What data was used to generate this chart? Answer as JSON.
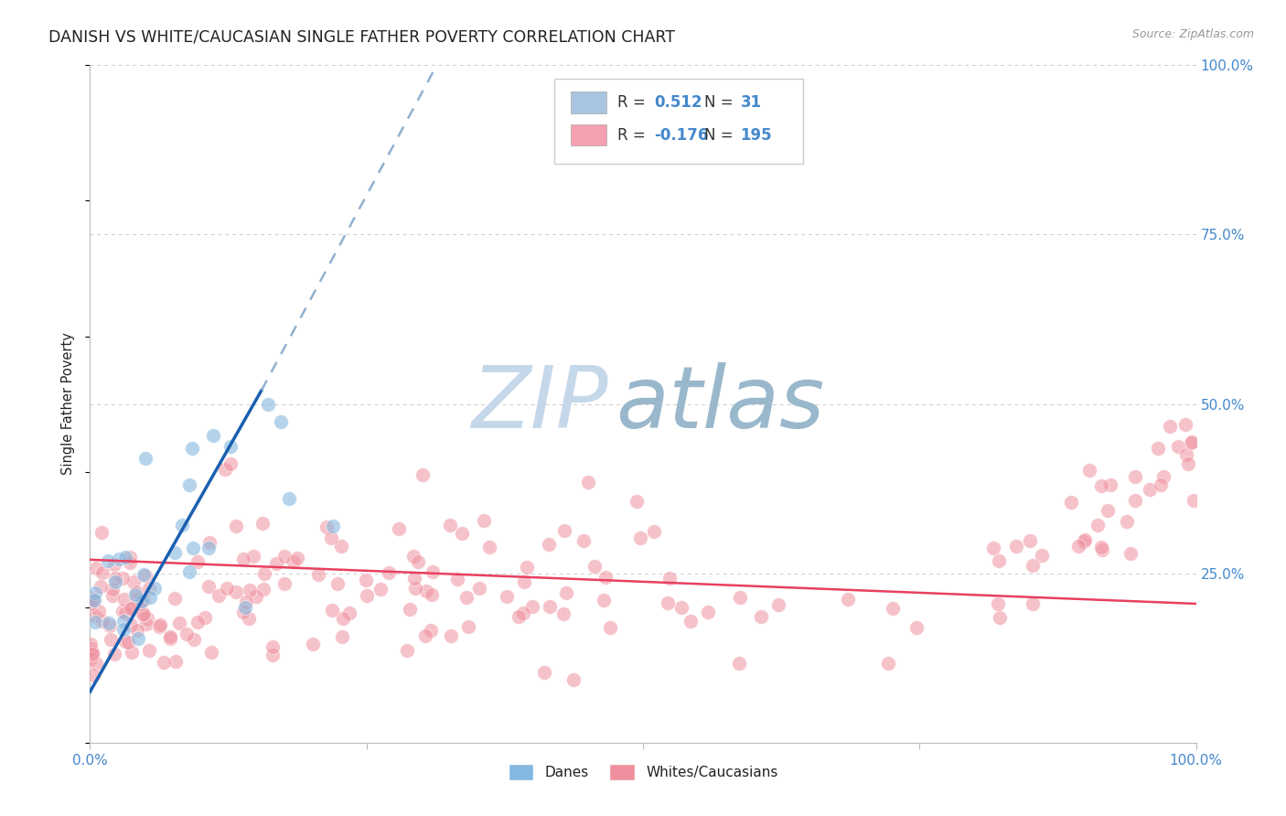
{
  "title": "DANISH VS WHITE/CAUCASIAN SINGLE FATHER POVERTY CORRELATION CHART",
  "source": "Source: ZipAtlas.com",
  "ylabel": "Single Father Poverty",
  "ytick_labels": [
    "",
    "25.0%",
    "50.0%",
    "75.0%",
    "100.0%"
  ],
  "legend_danes_R": "0.512",
  "legend_danes_N": "31",
  "legend_whites_R": "-0.176",
  "legend_whites_N": "195",
  "blue_scatter_color": "#85b8e0",
  "pink_scatter_color": "#f0909e",
  "blue_line_color": "#1a5fb0",
  "pink_line_color": "#e84060",
  "dashed_line_color": "#90b0d0",
  "legend_box_color": "#a8c4e0",
  "legend_pink_color": "#f4a0b0",
  "tick_label_color": "#4488cc",
  "title_color": "#222222",
  "source_color": "#999999",
  "grid_color": "#cccccc",
  "background_color": "#ffffff",
  "watermark_zip_color": "#c5d8ea",
  "watermark_atlas_color": "#9ab8cc",
  "random_seed": 7
}
